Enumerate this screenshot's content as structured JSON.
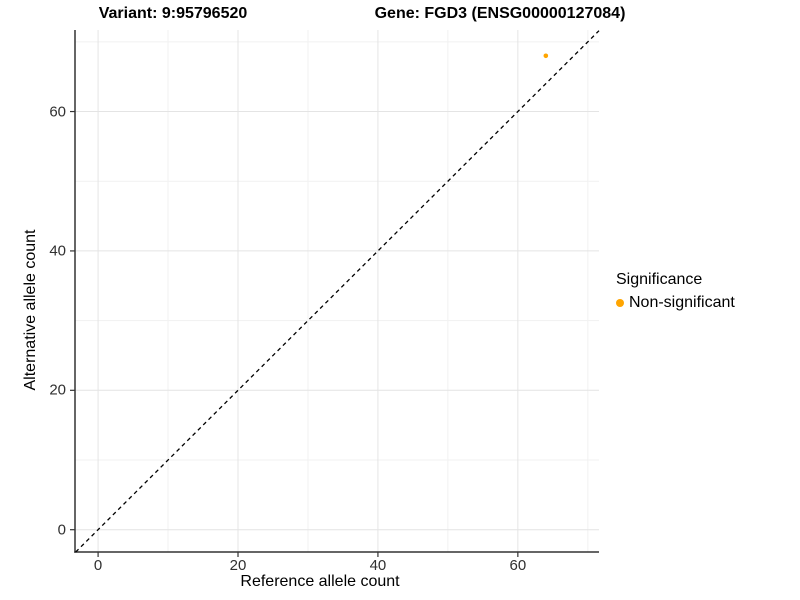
{
  "header": {
    "variant_title": "Variant: 9:95796520",
    "gene_title": "Gene: FGD3 (ENSG00000127084)"
  },
  "chart_data": {
    "type": "scatter",
    "xlabel": "Reference allele count",
    "ylabel": "Alternative allele count",
    "xlim": [
      -3.3,
      71.6
    ],
    "ylim": [
      -3.2,
      71.7
    ],
    "x_major_ticks": [
      0,
      20,
      40,
      60
    ],
    "y_major_ticks": [
      0,
      20,
      40,
      60
    ],
    "x_minor_ticks": [
      10,
      30,
      50,
      70
    ],
    "y_minor_ticks": [
      10,
      30,
      50,
      70
    ],
    "grid": true,
    "points": [
      {
        "x": 64,
        "y": 68,
        "series": "Non-significant",
        "color": "#FFA500"
      }
    ],
    "identity_line": {
      "equation": "y = x",
      "style": "dashed",
      "color": "#000000"
    },
    "legend": {
      "title": "Significance",
      "position": "right",
      "entries": [
        {
          "label": "Non-significant",
          "color": "#FFA500",
          "marker": "circle"
        }
      ]
    }
  },
  "colors": {
    "background": "#ffffff",
    "axis_line": "#333333",
    "major_grid": "#e4e4e4",
    "minor_grid": "#f1f1f1",
    "tick": "#333333",
    "point": "#FFA500"
  }
}
